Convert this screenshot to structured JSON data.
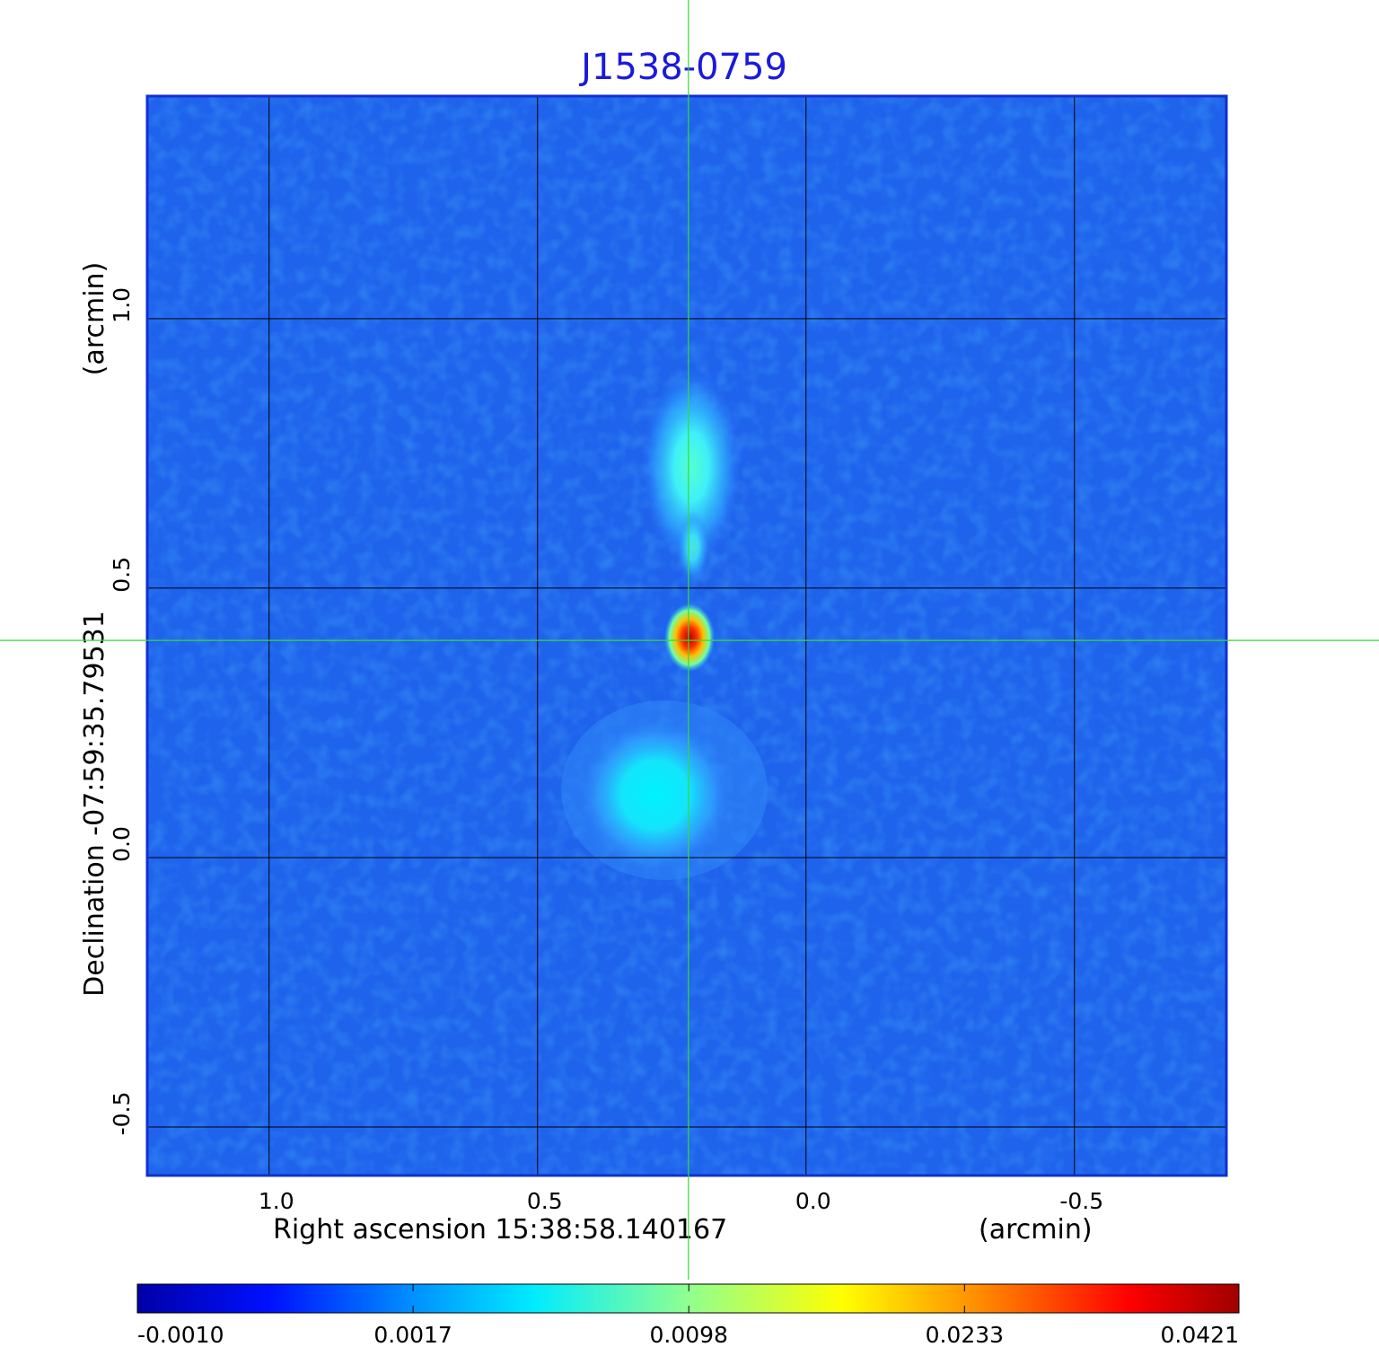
{
  "chart_data": {
    "type": "image",
    "title": "J1538-0759",
    "x_label": "Right ascension  15:38:58.140167",
    "x_unit": "(arcmin)",
    "y_label": "Declination -07:59:35.79531",
    "y_unit": "(arcmin)",
    "xlim": [
      1.227,
      -0.783
    ],
    "ylim": [
      -0.59,
      1.413
    ],
    "xticks": [
      {
        "value": 1,
        "label": "1.0"
      },
      0.5,
      {
        "value": 0,
        "label": "0.0"
      },
      -0.5
    ],
    "yticks": [
      -0.5,
      {
        "value": 0,
        "label": "0.0"
      },
      0.5,
      {
        "value": 1,
        "label": "1.0"
      }
    ],
    "grid": true,
    "crosshair": {
      "x": 0.219,
      "y": 0.403
    },
    "colorbar": {
      "scale": "sqrt",
      "lim": [
        -0.001,
        0.0421
      ],
      "ticks": [
        {
          "value": -0.001,
          "label": "-0.0010"
        },
        0.0017,
        0.0098,
        0.0233,
        0.0421
      ]
    }
  }
}
